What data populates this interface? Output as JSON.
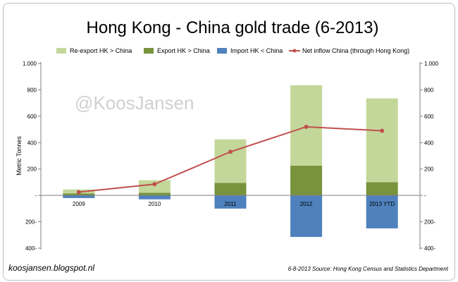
{
  "chart_data": {
    "type": "bar",
    "title": "Hong Kong - China gold trade (6-2013)",
    "ylabel": "Metric Tonnes",
    "ylim": [
      -400,
      1000
    ],
    "yticks": [
      {
        "value": 1000,
        "left": "1.000",
        "right": "1.000"
      },
      {
        "value": 800,
        "left": "800",
        "right": "800"
      },
      {
        "value": 600,
        "left": "600",
        "right": "600"
      },
      {
        "value": 400,
        "left": "400",
        "right": "400"
      },
      {
        "value": 200,
        "left": "200",
        "right": "200"
      },
      {
        "value": 0,
        "left": "-",
        "right": "-"
      },
      {
        "value": -200,
        "left": "200-",
        "right": "200-"
      },
      {
        "value": -400,
        "left": "400-",
        "right": "400-"
      }
    ],
    "categories": [
      "2009",
      "2010",
      "2011",
      "2012",
      "2013 YTD"
    ],
    "series": [
      {
        "name": "Re-export HK > China",
        "key": "reexport",
        "color": "#c4d79b",
        "values": [
          30,
          95,
          330,
          610,
          635
        ]
      },
      {
        "name": "Export HK > China",
        "key": "export",
        "color": "#77933c",
        "values": [
          15,
          20,
          95,
          225,
          100
        ]
      },
      {
        "name": "Import HK < China",
        "key": "import",
        "color": "#4f81bd",
        "values": [
          -20,
          -30,
          -100,
          -315,
          -250
        ]
      },
      {
        "name": "Net inflow China (through Hong Kong)",
        "key": "net",
        "color": "#c0504d",
        "values": [
          25,
          85,
          330,
          520,
          490
        ]
      }
    ],
    "legend_position": "top",
    "grid": false
  },
  "watermark": "@KoosJansen",
  "footer": {
    "left": "koosjansen.blogspot.nl",
    "right": "6-8-2013 Source: Hong Kong Census and Statistics Department"
  }
}
